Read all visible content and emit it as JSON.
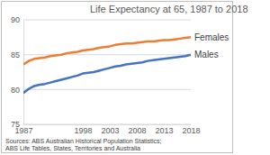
{
  "chart_data": {
    "type": "line",
    "title": "Life Expectancy at 65, 1987 to 2018",
    "source": [
      "Sources: ABS Australian Historical Population Statistics;",
      "ABS Life Tables, States, Territories and Australia"
    ],
    "x": [
      1987,
      1988,
      1989,
      1990,
      1991,
      1992,
      1993,
      1994,
      1995,
      1996,
      1997,
      1998,
      1999,
      2000,
      2001,
      2002,
      2003,
      2004,
      2005,
      2006,
      2007,
      2008,
      2009,
      2010,
      2011,
      2012,
      2013,
      2014,
      2015,
      2016,
      2017,
      2018
    ],
    "series": [
      {
        "name": "Males",
        "color": "#4472c4",
        "values": [
          79.5,
          80.1,
          80.5,
          80.7,
          80.8,
          81.0,
          81.2,
          81.4,
          81.6,
          81.8,
          82.0,
          82.3,
          82.4,
          82.5,
          82.7,
          82.9,
          83.1,
          83.3,
          83.4,
          83.6,
          83.7,
          83.8,
          83.9,
          84.1,
          84.2,
          84.3,
          84.4,
          84.5,
          84.6,
          84.7,
          84.8,
          85.0
        ]
      },
      {
        "name": "Females",
        "color": "#ed7d31",
        "values": [
          83.6,
          84.1,
          84.4,
          84.5,
          84.6,
          84.8,
          84.9,
          85.0,
          85.2,
          85.3,
          85.4,
          85.6,
          85.7,
          85.8,
          86.0,
          86.1,
          86.2,
          86.4,
          86.5,
          86.6,
          86.6,
          86.7,
          86.8,
          86.9,
          86.9,
          87.0,
          87.1,
          87.1,
          87.2,
          87.3,
          87.4,
          87.5
        ]
      }
    ],
    "xlim": [
      1987,
      2018
    ],
    "xticks": [
      1987,
      1998,
      2003,
      2008,
      2013,
      2018
    ],
    "ylim": [
      75,
      90
    ],
    "yticks": [
      75,
      80,
      85,
      90
    ],
    "grid": true,
    "legend": "right"
  }
}
